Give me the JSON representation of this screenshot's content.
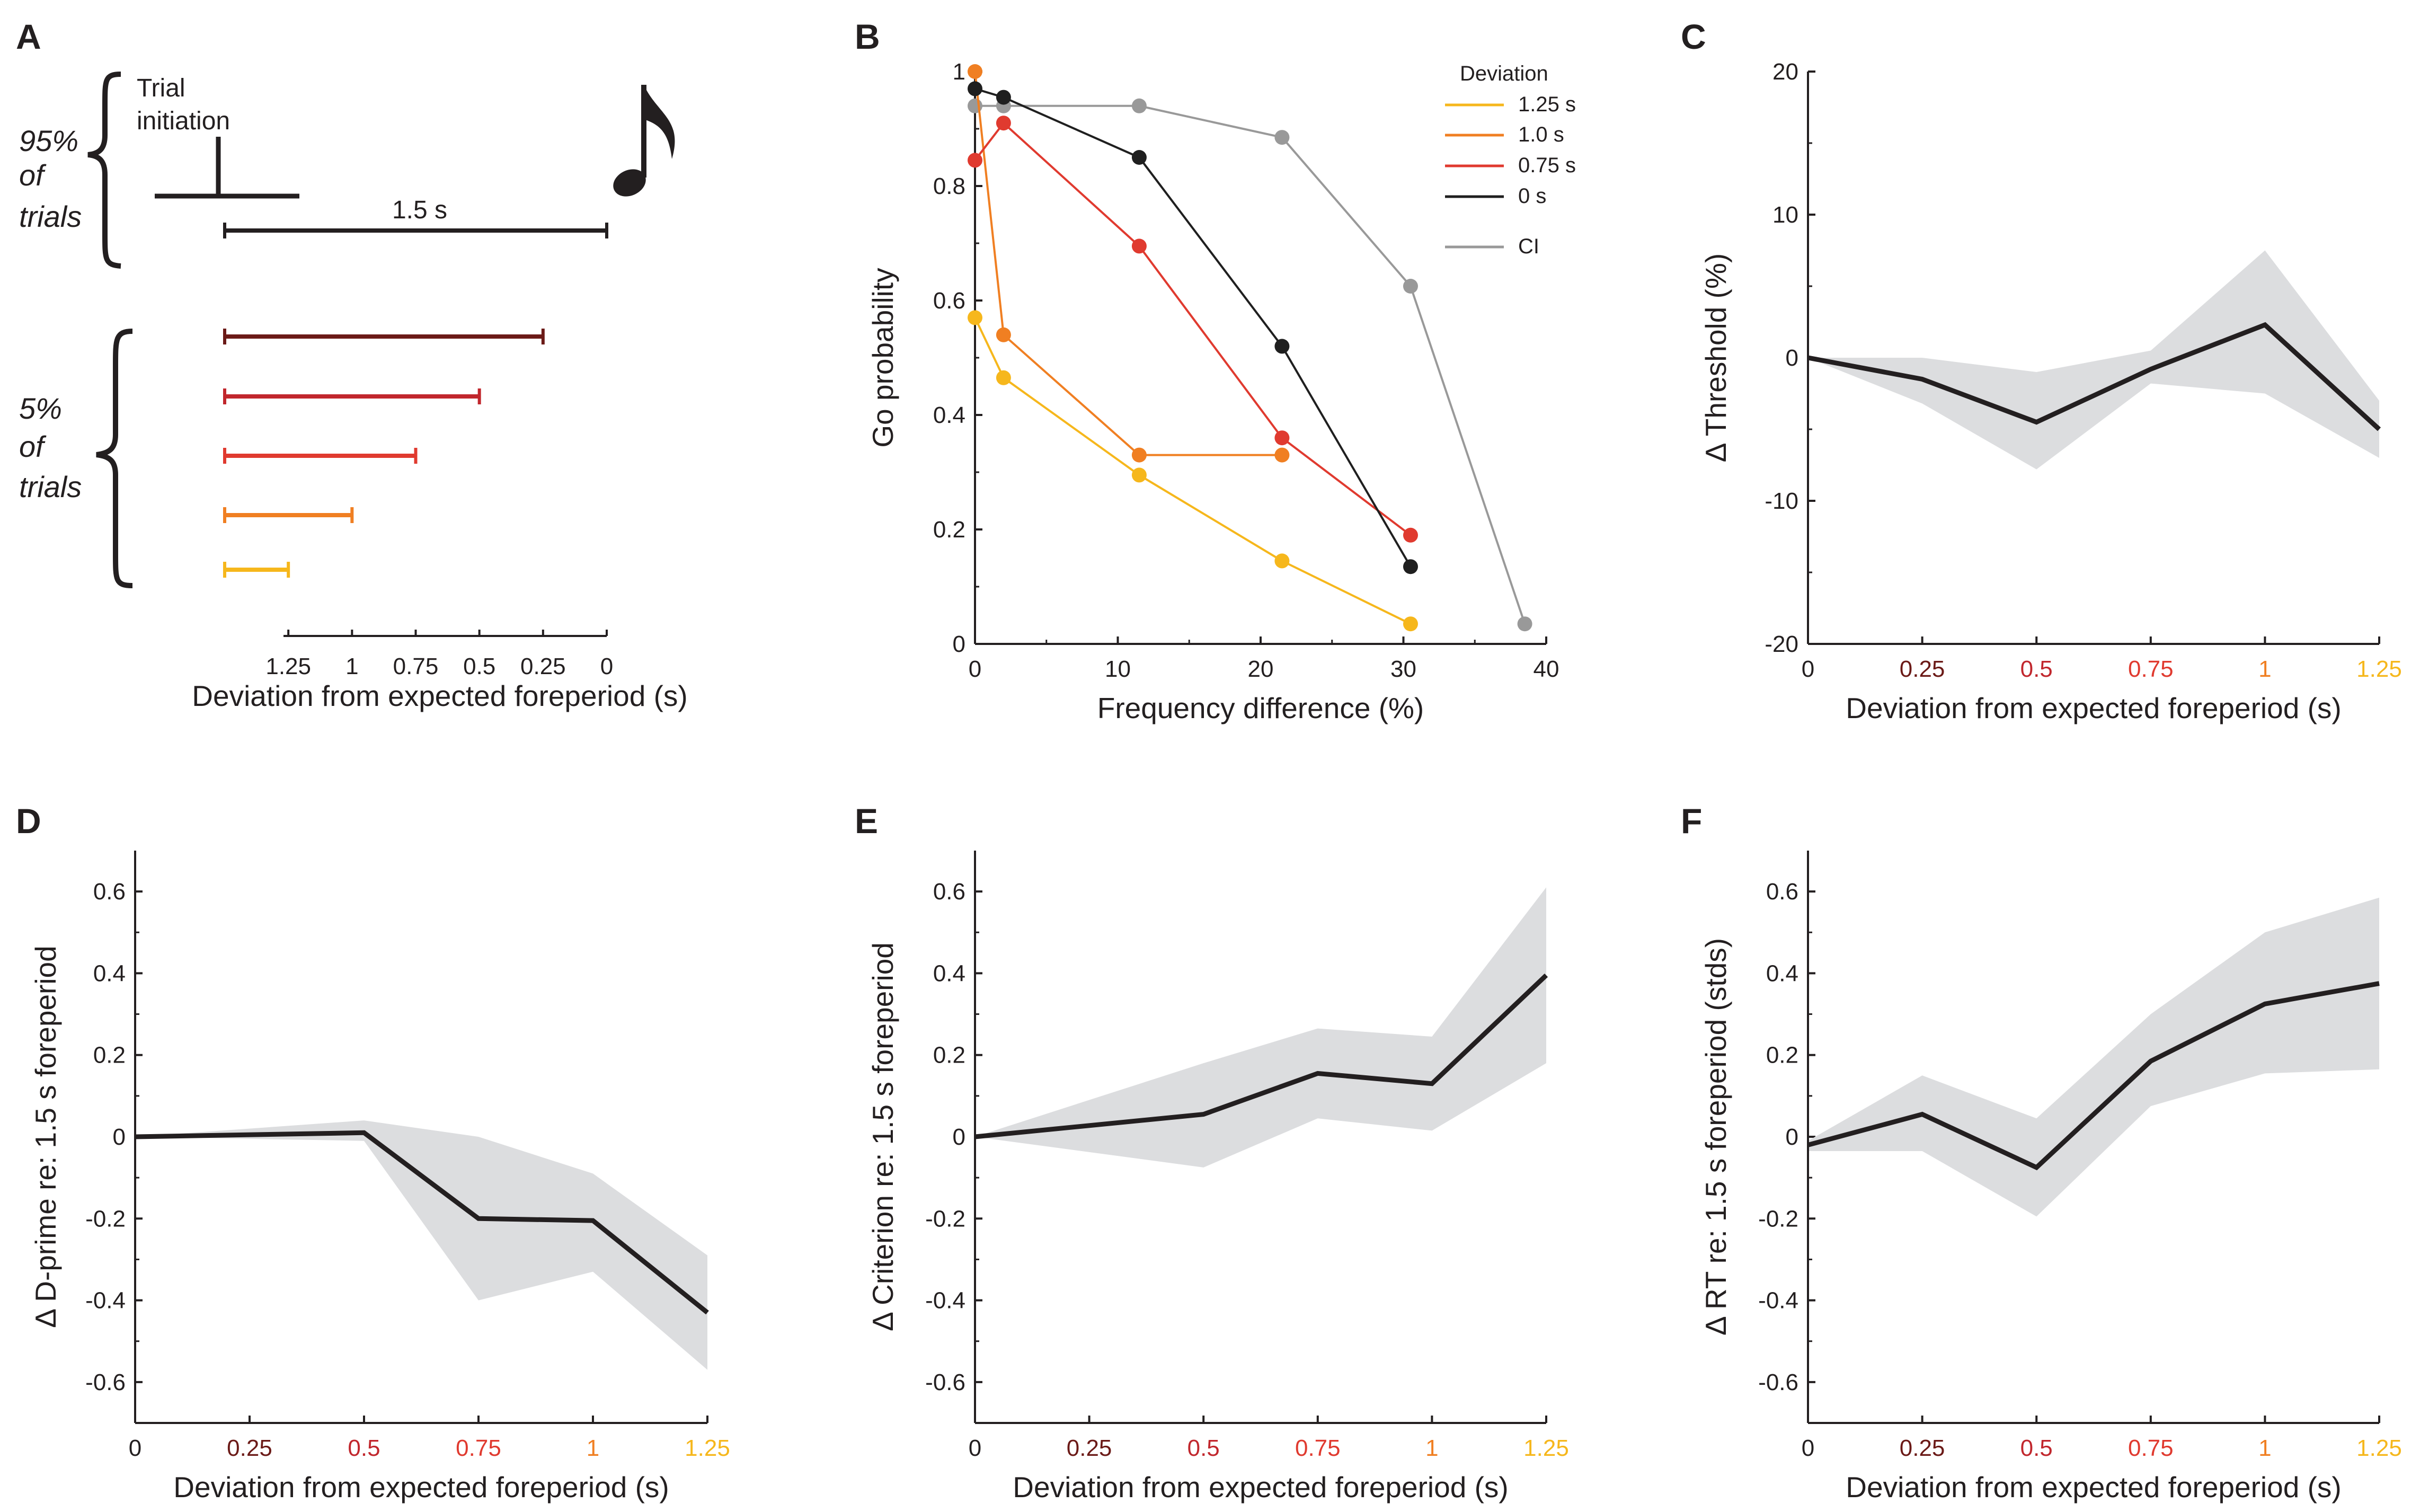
{
  "colors": {
    "ink": "#231f20",
    "band": "#dcdddf",
    "grey_line": "#999999",
    "dev_0": "#1f1f1f",
    "dev_025": "#6b1a17",
    "dev_05": "#c1272d",
    "dev_075": "#e03a2f",
    "dev_1": "#f07f22",
    "dev_125": "#f6b71c"
  },
  "panelA": {
    "letter": "A",
    "trial_initiation": [
      "Trial",
      "initiation"
    ],
    "foreperiod_label": "1.5 s",
    "group95": [
      "95%",
      "of",
      "trials"
    ],
    "group5": [
      "5%",
      "of",
      "trials"
    ],
    "xlabel": "Deviation from expected foreperiod (s)",
    "ticks": [
      "1.25",
      "1",
      "0.75",
      "0.5",
      "0.25",
      "0"
    ],
    "deviation_bars": [
      {
        "deviation": 0.25,
        "color": "#6b1a17"
      },
      {
        "deviation": 0.5,
        "color": "#c1272d"
      },
      {
        "deviation": 0.75,
        "color": "#e03a2f"
      },
      {
        "deviation": 1.0,
        "color": "#f07f22"
      },
      {
        "deviation": 1.25,
        "color": "#f6b71c"
      }
    ]
  },
  "chart_data": [
    {
      "id": "B",
      "type": "line",
      "letter": "B",
      "xlabel": "Frequency difference (%)",
      "ylabel": "Go probability",
      "xlim": [
        0,
        40
      ],
      "ylim": [
        0,
        1
      ],
      "xticks": [
        0,
        10,
        20,
        30,
        40
      ],
      "yticks": [
        0,
        0.2,
        0.4,
        0.6,
        0.8,
        1
      ],
      "ytick_labels": [
        "0",
        "0.2",
        "0.4",
        "0.6",
        "0.8",
        "1"
      ],
      "legend_title": "Deviation",
      "series": [
        {
          "name": "1.25 s",
          "color": "#f6b71c",
          "x": [
            0,
            2,
            11.5,
            21.5,
            30.5
          ],
          "y": [
            0.57,
            0.465,
            0.295,
            0.145,
            0.035
          ]
        },
        {
          "name": "1.0 s",
          "color": "#f07f22",
          "x": [
            0,
            2,
            11.5,
            21.5
          ],
          "y": [
            1.0,
            0.54,
            0.33,
            0.33
          ]
        },
        {
          "name": "0.75 s",
          "color": "#e03a2f",
          "x": [
            0,
            2,
            11.5,
            21.5,
            30.5
          ],
          "y": [
            0.845,
            0.91,
            0.695,
            0.36,
            0.19
          ]
        },
        {
          "name": "0 s",
          "color": "#1f1f1f",
          "x": [
            0,
            2,
            11.5,
            21.5,
            30.5
          ],
          "y": [
            0.97,
            0.955,
            0.85,
            0.52,
            0.135
          ]
        },
        {
          "name": "CI",
          "color": "#999999",
          "x": [
            0,
            2,
            11.5,
            21.5,
            30.5,
            38.5
          ],
          "y": [
            0.94,
            0.94,
            0.94,
            0.885,
            0.625,
            0.035
          ]
        }
      ]
    },
    {
      "id": "C",
      "type": "line",
      "letter": "C",
      "xlabel": "Deviation from expected foreperiod (s)",
      "ylabel": "Δ Threshold (%)",
      "xlim": [
        0,
        1.25
      ],
      "ylim": [
        -20,
        20
      ],
      "xticks": [
        0,
        0.25,
        0.5,
        0.75,
        1,
        1.25
      ],
      "xtick_labels": [
        "0",
        "0.25",
        "0.5",
        "0.75",
        "1",
        "1.25"
      ],
      "yticks": [
        -20,
        -10,
        0,
        10,
        20
      ],
      "ytick_labels": [
        "-20",
        "-10",
        "0",
        "10",
        "20"
      ],
      "x": [
        0,
        0.25,
        0.5,
        0.75,
        1,
        1.25
      ],
      "y": [
        0,
        -1.5,
        -4.5,
        -0.8,
        2.3,
        -5.0
      ],
      "ci_upper": [
        0,
        0,
        -1.0,
        0.5,
        7.5,
        -3.0
      ],
      "ci_lower": [
        0,
        -3.2,
        -7.8,
        -1.8,
        -2.5,
        -7.0
      ]
    },
    {
      "id": "D",
      "type": "line",
      "letter": "D",
      "xlabel": "Deviation from expected foreperiod (s)",
      "ylabel": "Δ D-prime re: 1.5 s foreperiod",
      "xlim": [
        0,
        1.25
      ],
      "ylim": [
        -0.7,
        0.7
      ],
      "xticks": [
        0,
        0.25,
        0.5,
        0.75,
        1,
        1.25
      ],
      "xtick_labels": [
        "0",
        "0.25",
        "0.5",
        "0.75",
        "1",
        "1.25"
      ],
      "yticks": [
        -0.6,
        -0.4,
        -0.2,
        0,
        0.2,
        0.4,
        0.6
      ],
      "ytick_labels": [
        "-0.6",
        "-0.4",
        "-0.2",
        "0",
        "0.2",
        "0.4",
        "0.6"
      ],
      "x": [
        0,
        0.5,
        0.75,
        1,
        1.25
      ],
      "y": [
        0,
        0.01,
        -0.2,
        -0.205,
        -0.43
      ],
      "ci_upper": [
        0,
        0.04,
        0.0,
        -0.09,
        -0.29
      ],
      "ci_lower": [
        0,
        -0.01,
        -0.4,
        -0.33,
        -0.57
      ]
    },
    {
      "id": "E",
      "type": "line",
      "letter": "E",
      "xlabel": "Deviation from expected foreperiod (s)",
      "ylabel": "Δ Criterion  re: 1.5 s foreperiod",
      "xlim": [
        0,
        1.25
      ],
      "ylim": [
        -0.7,
        0.7
      ],
      "xticks": [
        0,
        0.25,
        0.5,
        0.75,
        1,
        1.25
      ],
      "xtick_labels": [
        "0",
        "0.25",
        "0.5",
        "0.75",
        "1",
        "1.25"
      ],
      "yticks": [
        -0.6,
        -0.4,
        -0.2,
        0,
        0.2,
        0.4,
        0.6
      ],
      "ytick_labels": [
        "-0.6",
        "-0.4",
        "-0.2",
        "0",
        "0.2",
        "0.4",
        "0.6"
      ],
      "x": [
        0,
        0.5,
        0.75,
        1,
        1.25
      ],
      "y": [
        0,
        0.055,
        0.155,
        0.13,
        0.395
      ],
      "ci_upper": [
        0,
        0.18,
        0.265,
        0.245,
        0.61
      ],
      "ci_lower": [
        0,
        -0.075,
        0.045,
        0.015,
        0.18
      ]
    },
    {
      "id": "F",
      "type": "line",
      "letter": "F",
      "xlabel": "Deviation from expected foreperiod (s)",
      "ylabel": "Δ RT  re: 1.5 s foreperiod (stds)",
      "xlim": [
        0,
        1.25
      ],
      "ylim": [
        -0.7,
        0.7
      ],
      "xticks": [
        0,
        0.25,
        0.5,
        0.75,
        1,
        1.25
      ],
      "xtick_labels": [
        "0",
        "0.25",
        "0.5",
        "0.75",
        "1",
        "1.25"
      ],
      "yticks": [
        -0.6,
        -0.4,
        -0.2,
        0,
        0.2,
        0.4,
        0.6
      ],
      "ytick_labels": [
        "-0.6",
        "-0.4",
        "-0.2",
        "0",
        "0.2",
        "0.4",
        "0.6"
      ],
      "x": [
        0,
        0.25,
        0.5,
        0.75,
        1,
        1.25
      ],
      "y": [
        -0.02,
        0.055,
        -0.075,
        0.185,
        0.325,
        0.375
      ],
      "ci_upper": [
        -0.01,
        0.15,
        0.045,
        0.3,
        0.5,
        0.585
      ],
      "ci_lower": [
        -0.035,
        -0.035,
        -0.195,
        0.075,
        0.155,
        0.165
      ]
    }
  ]
}
